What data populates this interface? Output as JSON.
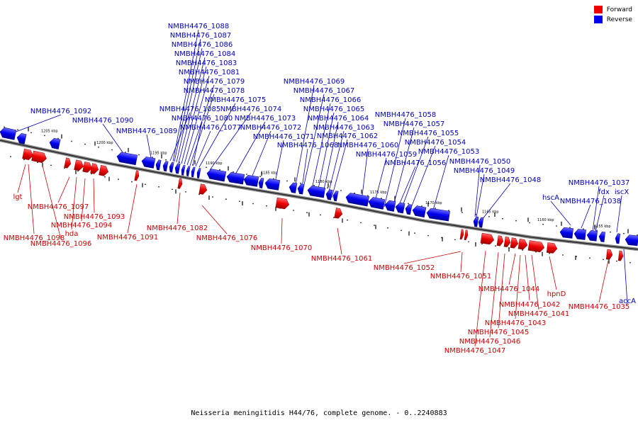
{
  "legend": {
    "forward": {
      "label": "Forward",
      "color": "#ee0000"
    },
    "reverse": {
      "label": "Reverse",
      "color": "#0000ee"
    }
  },
  "caption": "Neisseria meningitidis H44/76, complete genome. - 0..2240883",
  "scale_labels": [
    "1205 kbp",
    "1200 kbp",
    "1195 kbp",
    "1190 kbp",
    "1185 kbp",
    "1180 kbp",
    "1175 kbp",
    "1170 kbp",
    "1165 kbp",
    "1160 kbp",
    "1155 kbp"
  ],
  "forward_labels": [
    "lgt",
    "NMBH4476_1097",
    "hda",
    "NMBH4476_1098",
    "NMBH4476_1094",
    "NMBH4476_1093",
    "NMBH4476_1096",
    "NMBH4476_1091",
    "NMBH4476_1082",
    "NMBH4476_1076",
    "NMBH4476_1070",
    "NMBH4476_1061",
    "NMBH4476_1052",
    "NMBH4476_1051",
    "NMBH4476_1044",
    "hpnD",
    "NMBH4476_1042",
    "NMBH4476_1041",
    "NMBH4476_1043",
    "NMBH4476_1045",
    "NMBH4476_1046",
    "NMBH4476_1047",
    "NMBH4476_1035"
  ],
  "reverse_labels": [
    "NMBH4476_1088",
    "NMBH4476_1087",
    "NMBH4476_1086",
    "NMBH4476_1084",
    "NMBH4476_1083",
    "NMBH4476_1081",
    "NMBH4476_1079",
    "NMBH4476_1078",
    "NMBH4476_1075",
    "NMBH4476_1085",
    "NMBH4476_1074",
    "NMBH4476_1092",
    "NMBH4476_1080",
    "NMBH4476_1073",
    "NMBH4476_1090",
    "NMBH4476_1072",
    "NMBH4476_1077",
    "NMBH4476_1089",
    "NMBH4476_1071",
    "NMBH4476_1069",
    "NMBH4476_1067",
    "NMBH4476_1066",
    "NMBH4476_1065",
    "NMBH4476_1064",
    "NMBH4476_1063",
    "NMBH4476_1062",
    "NMBH4476_1068",
    "NMBH4476_1060",
    "NMBH4476_1058",
    "NMBH4476_1057",
    "NMBH4476_1055",
    "NMBH4476_1054",
    "NMBH4476_1053",
    "NMBH4476_1059",
    "NMBH4476_1056",
    "NMBH4476_1050",
    "NMBH4476_1049",
    "NMBH4476_1048",
    "hscA",
    "NMBH4476_1037",
    "fdx",
    "iscX",
    "NMBH4476_1038",
    "accA"
  ]
}
